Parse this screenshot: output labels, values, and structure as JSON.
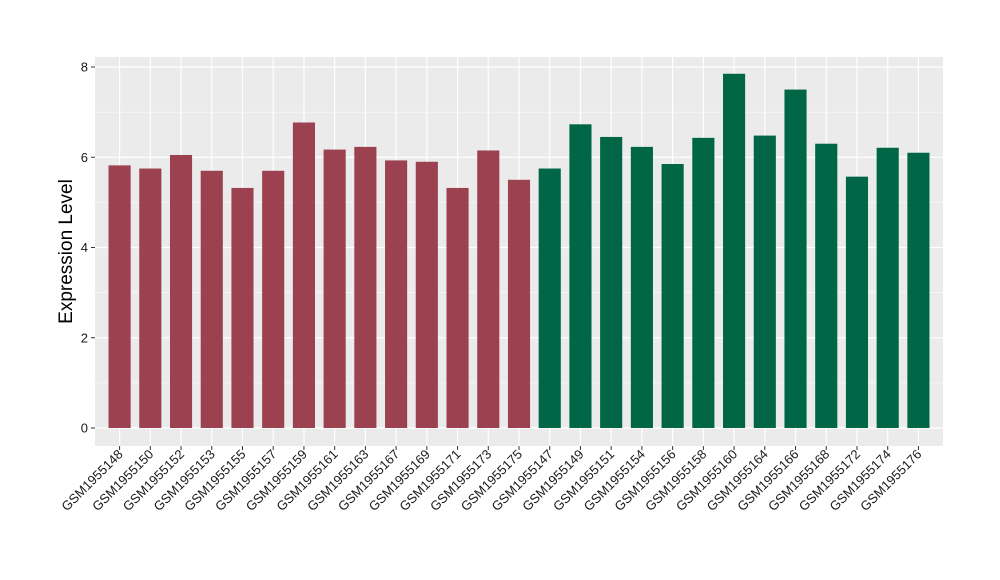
{
  "chart_data": {
    "type": "bar",
    "title": "",
    "xlabel": "",
    "ylabel": "Expression Level",
    "ylim": [
      0,
      8.2
    ],
    "yticks": [
      0,
      2,
      4,
      6,
      8
    ],
    "grid": true,
    "legend": "none",
    "colors": {
      "group1": "#9c4150",
      "group2": "#006645",
      "panel": "#ebebeb",
      "grid": "#ffffff"
    },
    "categories": [
      "GSM1955148",
      "GSM1955150",
      "GSM1955152",
      "GSM1955153",
      "GSM1955155",
      "GSM1955157",
      "GSM1955159",
      "GSM1955161",
      "GSM1955163",
      "GSM1955167",
      "GSM1955169",
      "GSM1955171",
      "GSM1955173",
      "GSM1955175",
      "GSM1955147",
      "GSM1955149",
      "GSM1955151",
      "GSM1955154",
      "GSM1955156",
      "GSM1955158",
      "GSM1955160",
      "GSM1955164",
      "GSM1955166",
      "GSM1955168",
      "GSM1955172",
      "GSM1955174",
      "GSM1955176"
    ],
    "values": [
      5.82,
      5.75,
      6.05,
      5.7,
      5.32,
      5.7,
      6.77,
      6.17,
      6.23,
      5.93,
      5.9,
      5.32,
      6.15,
      5.5,
      5.75,
      6.73,
      6.45,
      6.23,
      5.85,
      6.43,
      7.85,
      6.48,
      7.5,
      6.3,
      5.57,
      6.21,
      6.1
    ],
    "groups": [
      1,
      1,
      1,
      1,
      1,
      1,
      1,
      1,
      1,
      1,
      1,
      1,
      1,
      1,
      2,
      2,
      2,
      2,
      2,
      2,
      2,
      2,
      2,
      2,
      2,
      2,
      2
    ]
  }
}
